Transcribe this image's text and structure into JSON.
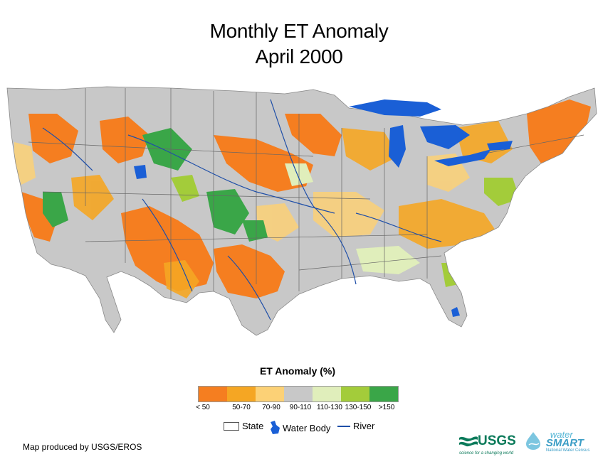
{
  "title": {
    "line1": "Monthly ET Anomaly",
    "line2": "April 2000"
  },
  "legend": {
    "title": "ET Anomaly (%)",
    "classes": [
      {
        "label": "< 50",
        "color": "#f57e20"
      },
      {
        "label": "50-70",
        "color": "#f5a623"
      },
      {
        "label": "70-90",
        "color": "#fcd176"
      },
      {
        "label": "90-110",
        "color": "#c8c8c8"
      },
      {
        "label": "110-130",
        "color": "#e0eebb"
      },
      {
        "label": "130-150",
        "color": "#a3cc3a"
      },
      {
        "label": ">150",
        "color": "#3aa648"
      }
    ],
    "keys": {
      "state": "State",
      "water": "Water Body",
      "river": "River"
    }
  },
  "credit": "Map produced by USGS/EROS",
  "logos": {
    "usgs": "USGS",
    "usgs_tagline": "science for a changing world",
    "water": "water",
    "smart": "SMART",
    "smart_tagline": "National Water Census"
  },
  "colors": {
    "water": "#1a5fd6",
    "river": "#1f4fa8",
    "state_line": "#666666"
  }
}
